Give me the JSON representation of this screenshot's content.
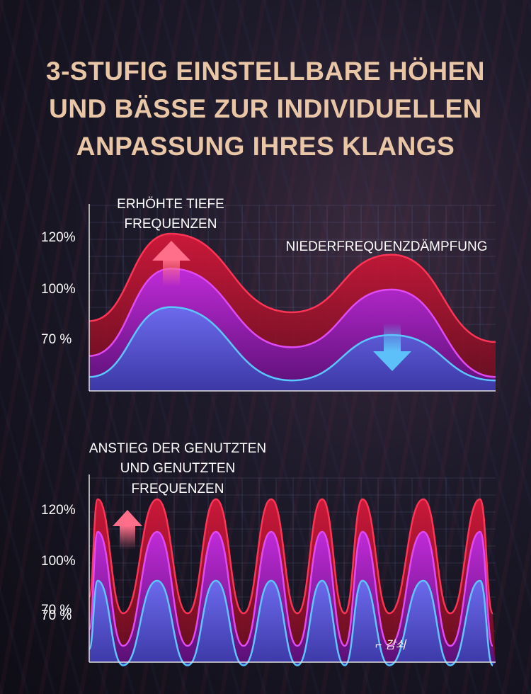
{
  "headline": {
    "line1": "3-STUFIG EINSTELLBARE HÖHEN",
    "line2": "UND BÄSSE ZUR INDIVIDUELLEN",
    "line3": "ANPASSUNG IHRES KLANGS"
  },
  "colors": {
    "headline": "#e9c7a6",
    "series_120": "#e8223f",
    "series_100": "#b41fd8",
    "series_70": "#52b6f2",
    "arrow_up": "#ff5c7a",
    "arrow_down": "#58b8f5"
  },
  "chart_data": [
    {
      "type": "area",
      "annotations": {
        "top_left": [
          "ERHÖHTE TIEFE",
          "FREQUENZEN"
        ],
        "top_right": "NIEDERFREQUENZDÄMPFUNG"
      },
      "y_tick_labels": [
        "120%",
        "100%",
        "70 %"
      ],
      "grid": true,
      "arrow_up_position": "first peak",
      "arrow_down_position": "second peak",
      "series": [
        {
          "level": "120%",
          "peak1": 1.2,
          "trough": 0.75,
          "peak2": 1.08,
          "end": 0.58,
          "start": 0.7
        },
        {
          "level": "100%",
          "peak1": 1.0,
          "trough": 0.55,
          "peak2": 0.88,
          "end": 0.38,
          "start": 0.5
        },
        {
          "level": "70 %",
          "peak1": 0.78,
          "trough": 0.36,
          "peak2": 0.62,
          "end": 0.36,
          "start": 0.38
        }
      ]
    },
    {
      "type": "area",
      "annotations": {
        "top_left": [
          "ANSTIEG DER GENUTZTEN",
          "UND GENUTZTEN",
          "FREQUENZEN"
        ],
        "bottom_right": "⌐ 감쇠"
      },
      "y_tick_labels": [
        "120%",
        "100%",
        "70 %",
        "70 %"
      ],
      "grid": true,
      "arrow_up_position": "left",
      "peaks_120": [
        1.2,
        1.2,
        1.2,
        1.2,
        1.2,
        1.2,
        1.2,
        1.2
      ],
      "peaks_100": [
        1.0,
        1.0,
        1.0,
        1.0,
        1.0,
        1.0,
        1.0,
        1.0
      ],
      "peaks_70": [
        0.7,
        0.7,
        0.7,
        0.7,
        0.7,
        0.7,
        0.7,
        0.7
      ]
    }
  ]
}
